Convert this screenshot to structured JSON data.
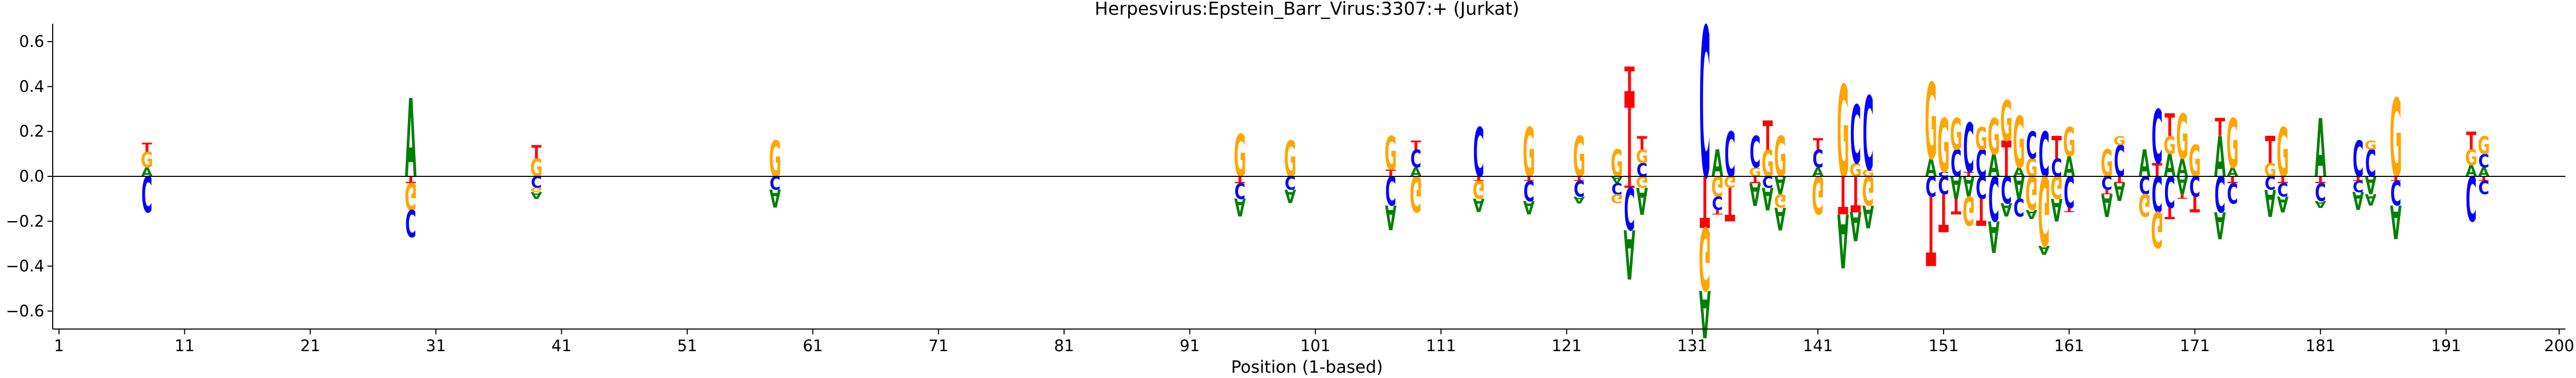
{
  "chart_data": {
    "type": "sequence-logo",
    "title": "Herpesvirus:Epstein_Barr_Virus:3307:+  (Jurkat)",
    "xlabel": "Position (1-based)",
    "ylabel": "",
    "xlim": [
      0.5,
      200.5
    ],
    "ylim": [
      -0.68,
      0.68
    ],
    "x_ticks": [
      1,
      11,
      21,
      31,
      41,
      51,
      61,
      71,
      81,
      91,
      101,
      111,
      121,
      131,
      141,
      151,
      161,
      171,
      181,
      191,
      200
    ],
    "x_tick_labels": [
      "1",
      "11",
      "21",
      "31",
      "41",
      "51",
      "61",
      "71",
      "81",
      "91",
      "101",
      "111",
      "121",
      "131",
      "141",
      "151",
      "161",
      "171",
      "181",
      "191",
      "200"
    ],
    "y_ticks": [
      -0.6,
      -0.4,
      -0.2,
      0.0,
      0.2,
      0.4,
      0.6
    ],
    "y_tick_labels": [
      "−0.6",
      "−0.4",
      "−0.2",
      "0.0",
      "0.2",
      "0.4",
      "0.6"
    ],
    "colors": {
      "A": "#008000",
      "C": "#0000ff",
      "G": "#ffa500",
      "T": "#ff0000"
    },
    "positions": [
      {
        "pos": 8,
        "up": [
          [
            "A",
            0.04
          ],
          [
            "G",
            0.07
          ],
          [
            "T",
            0.04
          ]
        ],
        "down": [
          [
            "C",
            0.16
          ]
        ]
      },
      {
        "pos": 29,
        "up": [
          [
            "A",
            0.35
          ]
        ],
        "down": [
          [
            "T",
            0.03
          ],
          [
            "G",
            0.12
          ],
          [
            "C",
            0.12
          ]
        ]
      },
      {
        "pos": 39,
        "up": [
          [
            "G",
            0.08
          ],
          [
            "T",
            0.06
          ]
        ],
        "down": [
          [
            "C",
            0.05
          ],
          [
            "G",
            0.02
          ],
          [
            "A",
            0.03
          ]
        ]
      },
      {
        "pos": 58,
        "up": [
          [
            "G",
            0.16
          ]
        ],
        "down": [
          [
            "C",
            0.06
          ],
          [
            "A",
            0.08
          ]
        ]
      },
      {
        "pos": 95,
        "up": [
          [
            "G",
            0.19
          ]
        ],
        "down": [
          [
            "T",
            0.03
          ],
          [
            "C",
            0.07
          ],
          [
            "A",
            0.08
          ]
        ]
      },
      {
        "pos": 99,
        "up": [
          [
            "G",
            0.16
          ]
        ],
        "down": [
          [
            "C",
            0.06
          ],
          [
            "A",
            0.06
          ]
        ]
      },
      {
        "pos": 107,
        "up": [
          [
            "T",
            0.03
          ],
          [
            "G",
            0.15
          ]
        ],
        "down": [
          [
            "C",
            0.13
          ],
          [
            "A",
            0.11
          ]
        ]
      },
      {
        "pos": 109,
        "up": [
          [
            "A",
            0.04
          ],
          [
            "C",
            0.08
          ],
          [
            "T",
            0.04
          ]
        ],
        "down": [
          [
            "G",
            0.16
          ]
        ]
      },
      {
        "pos": 114,
        "up": [
          [
            "C",
            0.22
          ]
        ],
        "down": [
          [
            "T",
            0.02
          ],
          [
            "G",
            0.08
          ],
          [
            "A",
            0.06
          ]
        ]
      },
      {
        "pos": 118,
        "up": [
          [
            "G",
            0.22
          ]
        ],
        "down": [
          [
            "T",
            0.02
          ],
          [
            "C",
            0.09
          ],
          [
            "A",
            0.06
          ]
        ]
      },
      {
        "pos": 122,
        "up": [
          [
            "G",
            0.18
          ]
        ],
        "down": [
          [
            "T",
            0.02
          ],
          [
            "C",
            0.07
          ],
          [
            "A",
            0.03
          ]
        ]
      },
      {
        "pos": 125,
        "up": [
          [
            "G",
            0.12
          ]
        ],
        "down": [
          [
            "A",
            0.03
          ],
          [
            "C",
            0.05
          ],
          [
            "G",
            0.04
          ]
        ]
      },
      {
        "pos": 126,
        "up": [
          [
            "T",
            0.38
          ],
          [
            "T",
            0.11
          ]
        ],
        "down": [
          [
            "T",
            0.05
          ],
          [
            "C",
            0.19
          ],
          [
            "A",
            0.22
          ]
        ]
      },
      {
        "pos": 127,
        "up": [
          [
            "C",
            0.06
          ],
          [
            "G",
            0.06
          ],
          [
            "T",
            0.06
          ]
        ],
        "down": [
          [
            "G",
            0.05
          ],
          [
            "A",
            0.12
          ]
        ]
      },
      {
        "pos": 132,
        "up": [
          [
            "C",
            0.67
          ]
        ],
        "down": [
          [
            "T",
            0.23
          ],
          [
            "G",
            0.28
          ],
          [
            "A",
            0.21
          ]
        ]
      },
      {
        "pos": 133,
        "up": [
          [
            "A",
            0.12
          ]
        ],
        "down": [
          [
            "G",
            0.09
          ],
          [
            "C",
            0.06
          ],
          [
            "T",
            0.02
          ]
        ]
      },
      {
        "pos": 134,
        "up": [
          [
            "C",
            0.2
          ]
        ],
        "down": [
          [
            "G",
            0.05
          ],
          [
            "T",
            0.15
          ]
        ]
      },
      {
        "pos": 136,
        "up": [
          [
            "G",
            0.04
          ],
          [
            "C",
            0.14
          ]
        ],
        "down": [
          [
            "T",
            0.03
          ],
          [
            "A",
            0.1
          ]
        ]
      },
      {
        "pos": 137,
        "up": [
          [
            "G",
            0.12
          ],
          [
            "T",
            0.13
          ]
        ],
        "down": [
          [
            "C",
            0.05
          ],
          [
            "A",
            0.1
          ]
        ]
      },
      {
        "pos": 138,
        "up": [
          [
            "G",
            0.18
          ]
        ],
        "down": [
          [
            "A",
            0.08
          ],
          [
            "G",
            0.06
          ],
          [
            "A",
            0.1
          ]
        ]
      },
      {
        "pos": 141,
        "up": [
          [
            "A",
            0.04
          ],
          [
            "C",
            0.08
          ],
          [
            "T",
            0.05
          ]
        ],
        "down": [
          [
            "G",
            0.17
          ]
        ]
      },
      {
        "pos": 143,
        "up": [
          [
            "G",
            0.41
          ]
        ],
        "down": [
          [
            "T",
            0.17
          ],
          [
            "A",
            0.24
          ]
        ]
      },
      {
        "pos": 144,
        "up": [
          [
            "G",
            0.06
          ],
          [
            "C",
            0.26
          ]
        ],
        "down": [
          [
            "T",
            0.16
          ],
          [
            "A",
            0.13
          ]
        ]
      },
      {
        "pos": 145,
        "up": [
          [
            "G",
            0.03
          ],
          [
            "C",
            0.33
          ]
        ],
        "down": [
          [
            "G",
            0.13
          ],
          [
            "A",
            0.1
          ]
        ]
      },
      {
        "pos": 150,
        "up": [
          [
            "A",
            0.08
          ],
          [
            "G",
            0.34
          ]
        ],
        "down": [
          [
            "C",
            0.09
          ],
          [
            "T",
            0.31
          ]
        ]
      },
      {
        "pos": 151,
        "up": [
          [
            "C",
            0.02
          ],
          [
            "G",
            0.24
          ]
        ],
        "down": [
          [
            "C",
            0.08
          ],
          [
            "T",
            0.17
          ]
        ]
      },
      {
        "pos": 152,
        "up": [
          [
            "C",
            0.12
          ],
          [
            "G",
            0.14
          ]
        ],
        "down": [
          [
            "A",
            0.1
          ],
          [
            "T",
            0.07
          ]
        ]
      },
      {
        "pos": 153,
        "up": [
          [
            "T",
            0.02
          ],
          [
            "C",
            0.22
          ]
        ],
        "down": [
          [
            "A",
            0.09
          ],
          [
            "G",
            0.13
          ]
        ]
      },
      {
        "pos": 154,
        "up": [
          [
            "C",
            0.12
          ],
          [
            "G",
            0.1
          ]
        ],
        "down": [
          [
            "C",
            0.1
          ],
          [
            "T",
            0.12
          ]
        ]
      },
      {
        "pos": 155,
        "up": [
          [
            "A",
            0.1
          ],
          [
            "G",
            0.16
          ]
        ],
        "down": [
          [
            "C",
            0.2
          ],
          [
            "A",
            0.14
          ]
        ]
      },
      {
        "pos": 156,
        "up": [
          [
            "T",
            0.16
          ],
          [
            "G",
            0.18
          ]
        ],
        "down": [
          [
            "C",
            0.12
          ],
          [
            "A",
            0.06
          ]
        ]
      },
      {
        "pos": 157,
        "up": [
          [
            "A",
            0.04
          ],
          [
            "G",
            0.23
          ]
        ],
        "down": [
          [
            "A",
            0.1
          ],
          [
            "C",
            0.08
          ]
        ]
      },
      {
        "pos": 158,
        "up": [
          [
            "G",
            0.08
          ],
          [
            "C",
            0.12
          ]
        ],
        "down": [
          [
            "G",
            0.15
          ],
          [
            "A",
            0.04
          ]
        ]
      },
      {
        "pos": 159,
        "up": [
          [
            "C",
            0.2
          ]
        ],
        "down": [
          [
            "G",
            0.31
          ],
          [
            "A",
            0.04
          ]
        ]
      },
      {
        "pos": 160,
        "up": [
          [
            "C",
            0.08
          ],
          [
            "T",
            0.1
          ]
        ],
        "down": [
          [
            "G",
            0.1
          ],
          [
            "A",
            0.1
          ]
        ]
      },
      {
        "pos": 161,
        "up": [
          [
            "A",
            0.09
          ],
          [
            "G",
            0.13
          ]
        ],
        "down": [
          [
            "C",
            0.14
          ],
          [
            "T",
            0.02
          ]
        ]
      },
      {
        "pos": 164,
        "up": [
          [
            "G",
            0.12
          ]
        ],
        "down": [
          [
            "C",
            0.06
          ],
          [
            "T",
            0.02
          ],
          [
            "A",
            0.1
          ]
        ]
      },
      {
        "pos": 165,
        "up": [
          [
            "C",
            0.14
          ],
          [
            "G",
            0.04
          ]
        ],
        "down": [
          [
            "T",
            0.03
          ],
          [
            "A",
            0.08
          ]
        ]
      },
      {
        "pos": 167,
        "up": [
          [
            "A",
            0.12
          ]
        ],
        "down": [
          [
            "C",
            0.08
          ],
          [
            "G",
            0.1
          ]
        ]
      },
      {
        "pos": 168,
        "up": [
          [
            "T",
            0.06
          ],
          [
            "C",
            0.24
          ]
        ],
        "down": [
          [
            "C",
            0.16
          ],
          [
            "G",
            0.16
          ]
        ]
      },
      {
        "pos": 169,
        "up": [
          [
            "A",
            0.1
          ],
          [
            "G",
            0.08
          ],
          [
            "T",
            0.1
          ]
        ],
        "down": [
          [
            "C",
            0.14
          ],
          [
            "T",
            0.05
          ]
        ]
      },
      {
        "pos": 170,
        "up": [
          [
            "A",
            0.08
          ],
          [
            "G",
            0.2
          ]
        ],
        "down": [
          [
            "A",
            0.08
          ],
          [
            "T",
            0.02
          ]
        ]
      },
      {
        "pos": 171,
        "up": [
          [
            "G",
            0.14
          ]
        ],
        "down": [
          [
            "C",
            0.09
          ],
          [
            "T",
            0.07
          ]
        ]
      },
      {
        "pos": 173,
        "up": [
          [
            "A",
            0.18
          ],
          [
            "T",
            0.08
          ]
        ],
        "down": [
          [
            "C",
            0.16
          ],
          [
            "A",
            0.12
          ]
        ]
      },
      {
        "pos": 174,
        "up": [
          [
            "A",
            0.04
          ],
          [
            "G",
            0.22
          ]
        ],
        "down": [
          [
            "T",
            0.03
          ],
          [
            "C",
            0.09
          ]
        ]
      },
      {
        "pos": 177,
        "up": [
          [
            "G",
            0.06
          ],
          [
            "T",
            0.12
          ]
        ],
        "down": [
          [
            "C",
            0.06
          ],
          [
            "A",
            0.12
          ]
        ]
      },
      {
        "pos": 178,
        "up": [
          [
            "G",
            0.22
          ]
        ],
        "down": [
          [
            "T",
            0.03
          ],
          [
            "C",
            0.06
          ],
          [
            "A",
            0.07
          ]
        ]
      },
      {
        "pos": 181,
        "up": [
          [
            "A",
            0.26
          ]
        ],
        "down": [
          [
            "T",
            0.03
          ],
          [
            "C",
            0.08
          ],
          [
            "A",
            0.03
          ]
        ]
      },
      {
        "pos": 184,
        "up": [
          [
            "C",
            0.16
          ]
        ],
        "down": [
          [
            "T",
            0.02
          ],
          [
            "C",
            0.05
          ],
          [
            "A",
            0.08
          ]
        ]
      },
      {
        "pos": 185,
        "up": [
          [
            "C",
            0.12
          ],
          [
            "G",
            0.04
          ]
        ],
        "down": [
          [
            "A",
            0.08
          ],
          [
            "A",
            0.05
          ]
        ]
      },
      {
        "pos": 187,
        "up": [
          [
            "G",
            0.35
          ]
        ],
        "down": [
          [
            "T",
            0.02
          ],
          [
            "C",
            0.11
          ],
          [
            "A",
            0.15
          ]
        ]
      },
      {
        "pos": 193,
        "up": [
          [
            "A",
            0.05
          ],
          [
            "G",
            0.07
          ],
          [
            "T",
            0.08
          ]
        ],
        "down": [
          [
            "C",
            0.2
          ]
        ]
      },
      {
        "pos": 194,
        "up": [
          [
            "A",
            0.04
          ],
          [
            "C",
            0.06
          ],
          [
            "G",
            0.08
          ]
        ],
        "down": [
          [
            "T",
            0.02
          ],
          [
            "C",
            0.06
          ]
        ]
      }
    ]
  }
}
